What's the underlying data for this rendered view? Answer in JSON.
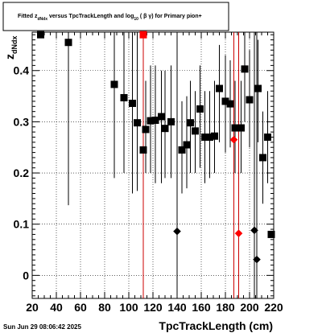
{
  "chart_data": {
    "type": "scatter",
    "title": {
      "prefix": "Fitted  z",
      "prefix_sub": "dNdx",
      "middle": "  versus TpcTrackLength and log",
      "middle_sub": "10",
      "suffix": " ( β γ) for Primary pion+"
    },
    "xlabel": "TpcTrackLength (cm)",
    "ylabel": "z",
    "ylabel_sub": "dNdx",
    "xlim": [
      20,
      220
    ],
    "ylim": [
      -0.045,
      0.475
    ],
    "x_ticks": [
      20,
      40,
      60,
      80,
      100,
      120,
      140,
      160,
      180,
      200,
      220
    ],
    "y_ticks": [
      0,
      0.1,
      0.2,
      0.3,
      0.4
    ],
    "y_tick_labels": [
      "0",
      "0.1",
      "0.2",
      "0.3",
      "0.4"
    ],
    "grid": true,
    "footer_date": "Sun Jun 29 08:06:42 2025",
    "colors": {
      "black": "#000000",
      "red": "#ff0000",
      "dark_red": "#cc0000"
    },
    "series": [
      {
        "marker": "square",
        "color": "#000000",
        "points": [
          {
            "x": 27,
            "y": 0.47,
            "lo": 0.47,
            "hi": 0.475
          },
          {
            "x": 50,
            "y": 0.455,
            "lo": 0.137,
            "hi": 0.475
          },
          {
            "x": 88,
            "y": 0.373,
            "lo": 0.19,
            "hi": 0.475
          },
          {
            "x": 96,
            "y": 0.347,
            "lo": 0.2,
            "hi": 0.475
          },
          {
            "x": 103,
            "y": 0.336,
            "lo": 0.16,
            "hi": 0.475
          },
          {
            "x": 107,
            "y": 0.298,
            "lo": 0.165,
            "hi": 0.475
          },
          {
            "x": 114,
            "y": 0.285,
            "lo": 0.2,
            "hi": 0.38
          },
          {
            "x": 118,
            "y": 0.302,
            "lo": 0.2,
            "hi": 0.41
          },
          {
            "x": 122,
            "y": 0.303,
            "lo": 0.18,
            "hi": 0.41
          },
          {
            "x": 127,
            "y": 0.31,
            "lo": 0.18,
            "hi": 0.4
          },
          {
            "x": 130,
            "y": 0.287,
            "lo": 0.19,
            "hi": 0.4
          },
          {
            "x": 135,
            "y": 0.3,
            "lo": 0.19,
            "hi": 0.41
          },
          {
            "x": 144,
            "y": 0.245,
            "lo": 0.16,
            "hi": 0.34
          },
          {
            "x": 148,
            "y": 0.255,
            "lo": 0.17,
            "hi": 0.35
          },
          {
            "x": 151,
            "y": 0.298,
            "lo": 0.2,
            "hi": 0.38
          },
          {
            "x": 155,
            "y": 0.282,
            "lo": 0.2,
            "hi": 0.36
          },
          {
            "x": 159,
            "y": 0.325,
            "lo": 0.21,
            "hi": 0.41
          },
          {
            "x": 163,
            "y": 0.27,
            "lo": 0.18,
            "hi": 0.36
          },
          {
            "x": 167,
            "y": 0.27,
            "lo": 0.19,
            "hi": 0.36
          },
          {
            "x": 171,
            "y": 0.272,
            "lo": 0.2,
            "hi": 0.38
          },
          {
            "x": 175,
            "y": 0.365,
            "lo": 0.26,
            "hi": 0.45
          },
          {
            "x": 180,
            "y": 0.34,
            "lo": 0.24,
            "hi": 0.43
          },
          {
            "x": 184,
            "y": 0.335,
            "lo": 0.25,
            "hi": 0.42
          },
          {
            "x": 188,
            "y": 0.288,
            "lo": 0.2,
            "hi": 0.38
          },
          {
            "x": 193,
            "y": 0.288,
            "lo": 0.2,
            "hi": 0.38
          },
          {
            "x": 196,
            "y": 0.403,
            "lo": 0.3,
            "hi": 0.475
          },
          {
            "x": 200,
            "y": 0.343,
            "lo": 0.25,
            "hi": 0.44
          },
          {
            "x": 207,
            "y": 0.365,
            "lo": 0.26,
            "hi": 0.46
          },
          {
            "x": 211,
            "y": 0.23,
            "lo": 0.14,
            "hi": 0.32
          },
          {
            "x": 215,
            "y": 0.27,
            "lo": 0.18,
            "hi": 0.36
          },
          {
            "x": 218,
            "y": 0.08,
            "lo": 0.08,
            "hi": 0.08
          }
        ]
      },
      {
        "marker": "square",
        "color": "#ff0000",
        "points": [
          {
            "x": 112,
            "y": 0.47,
            "lo": -0.045,
            "hi": 0.475
          }
        ]
      },
      {
        "marker": "square",
        "color": "#000000",
        "points": [
          {
            "x": 112,
            "y": 0.245,
            "lo": 0.245,
            "hi": 0.245
          }
        ]
      },
      {
        "marker": "diamond",
        "color": "#000000",
        "points": [
          {
            "x": 140,
            "y": 0.086,
            "lo": -0.045,
            "hi": 0.475
          },
          {
            "x": 204,
            "y": 0.088,
            "lo": -0.045,
            "hi": 0.475
          },
          {
            "x": 206,
            "y": 0.031,
            "lo": -0.045,
            "hi": 0.475
          }
        ]
      },
      {
        "marker": "diamond",
        "color": "#ff0000",
        "points": [
          {
            "x": 187,
            "y": 0.265,
            "lo": -0.045,
            "hi": 0.475
          },
          {
            "x": 191,
            "y": 0.082,
            "lo": -0.045,
            "hi": 0.475
          }
        ]
      }
    ]
  }
}
